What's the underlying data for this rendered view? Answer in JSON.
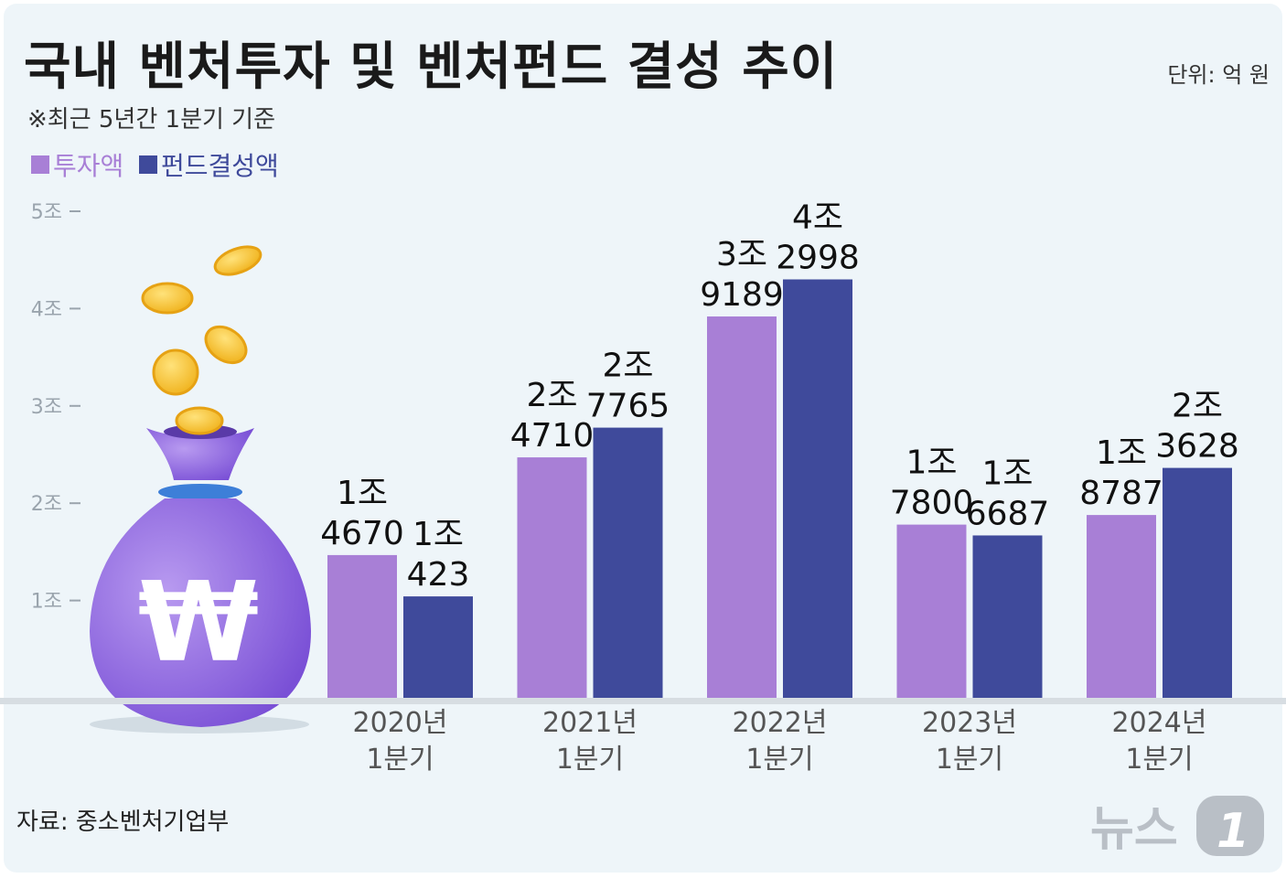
{
  "title": "국내 벤처투자 및 벤처펀드 결성 추이",
  "unit": "단위: 억 원",
  "subtitle": "※최근 5년간 1분기 기준",
  "source": "자료: 중소벤처기업부",
  "logo_text": "뉴스1",
  "colors": {
    "invest": "#a87fd6",
    "fund": "#3f4a9b",
    "background": "#eef5f9"
  },
  "chart_data": {
    "type": "bar",
    "categories": [
      "2020년\n1분기",
      "2021년\n1분기",
      "2022년\n1분기",
      "2023년\n1분기",
      "2024년\n1분기"
    ],
    "y_ticks": [
      "1조",
      "2조",
      "3조",
      "4조",
      "5조"
    ],
    "ylim": [
      0,
      50000
    ],
    "series": [
      {
        "name": "투자액",
        "values": [
          14670,
          24710,
          39189,
          17800,
          18787
        ],
        "labels": [
          "1조\n4670",
          "2조\n4710",
          "3조\n9189",
          "1조\n7800",
          "1조\n8787"
        ]
      },
      {
        "name": "펀드결성액",
        "values": [
          10423,
          27765,
          42998,
          16687,
          23628
        ],
        "labels": [
          "1조\n423",
          "2조\n7765",
          "4조\n2998",
          "1조\n6687",
          "2조\n3628"
        ]
      }
    ],
    "legend_position": "top-left",
    "grid": false
  }
}
